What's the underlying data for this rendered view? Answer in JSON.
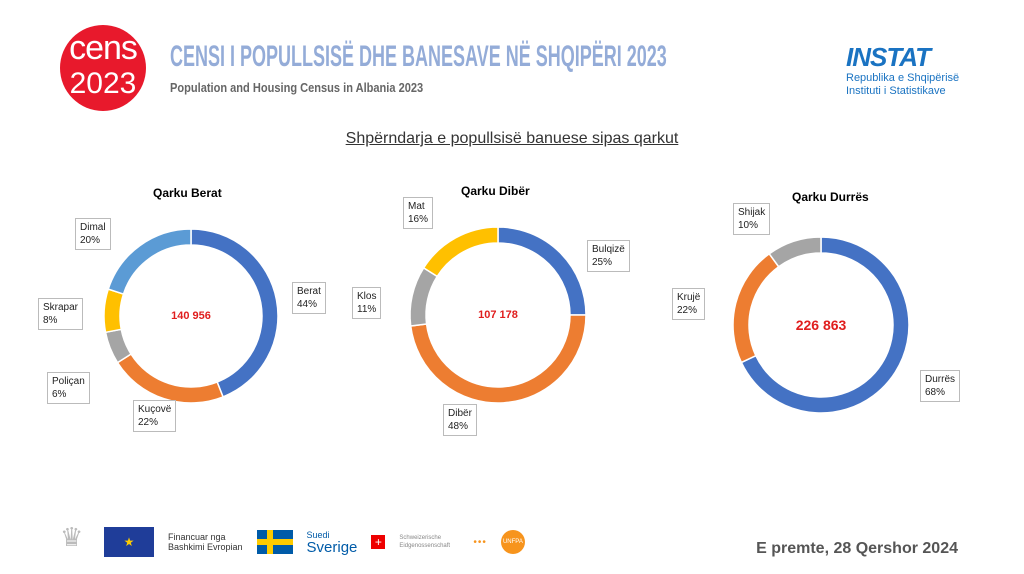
{
  "header": {
    "logo_line1": "cens",
    "logo_line2": "2023",
    "title": "CENSI I POPULLSISË DHE BANESAVE NË SHQIPËRI 2023",
    "subtitle": "Population and Housing Census in Albania 2023",
    "instat_name": "INSTAT",
    "instat_line1": "Republika e Shqipërisë",
    "instat_line2": "Instituti i Statistikave"
  },
  "main_title": "Shpërndarja e popullsisë banuese sipas qarkut",
  "chart_data": [
    {
      "type": "pie",
      "donut": true,
      "title": "Qarku Berat",
      "total": "140 956",
      "labels": [
        "Berat",
        "Kuçovë",
        "Poliçan",
        "Skrapar",
        "Dimal"
      ],
      "values": [
        44,
        22,
        6,
        8,
        20
      ],
      "colors": [
        "#4472C4",
        "#ED7D31",
        "#A5A5A5",
        "#FFC000",
        "#5B9BD5"
      ]
    },
    {
      "type": "pie",
      "donut": true,
      "title": "Qarku Dibër",
      "total": "107 178",
      "labels": [
        "Bulqizë",
        "Dibër",
        "Klos",
        "Mat"
      ],
      "values": [
        25,
        48,
        11,
        16
      ],
      "colors": [
        "#4472C4",
        "#ED7D31",
        "#A5A5A5",
        "#FFC000"
      ]
    },
    {
      "type": "pie",
      "donut": true,
      "title": "Qarku Durrës",
      "total": "226 863",
      "labels": [
        "Durrës",
        "Krujë",
        "Shijak"
      ],
      "values": [
        68,
        22,
        10
      ],
      "colors": [
        "#4472C4",
        "#ED7D31",
        "#A5A5A5"
      ]
    }
  ],
  "footer": {
    "eu_text_1": "Financuar nga",
    "eu_text_2": "Bashkimi Evropian",
    "sweden_1": "Suedi",
    "sweden_2": "Sverige",
    "swiss": "Schweizerische Eidgenossenschaft",
    "unfpa": "UNFPA",
    "date": "E premte, 28 Qershor 2024"
  }
}
